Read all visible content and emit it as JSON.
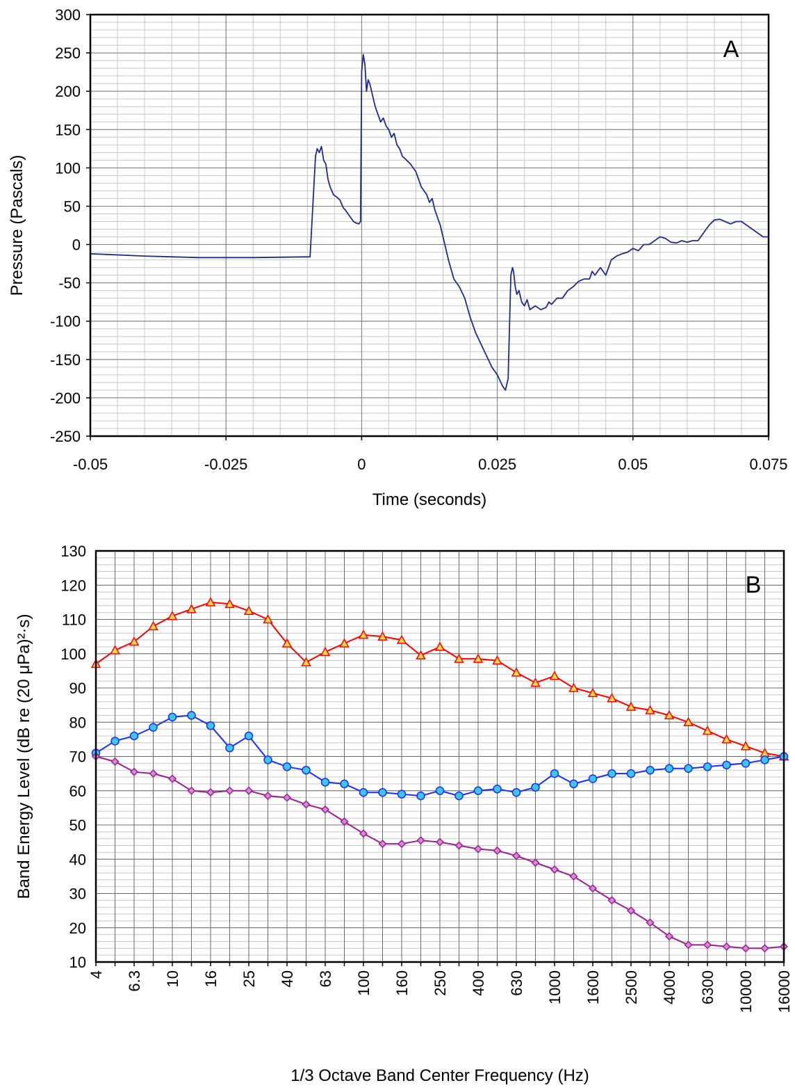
{
  "chart_data": [
    {
      "type": "line",
      "panel_label": "A",
      "xlabel": "Time (seconds)",
      "ylabel": "Pressure (Pascals)",
      "xlim": [
        -0.05,
        0.075
      ],
      "ylim": [
        -250,
        300
      ],
      "x_ticks": [
        -0.05,
        -0.025,
        0,
        0.025,
        0.05,
        0.075
      ],
      "x_tick_labels": [
        "-0.05",
        "-0.025",
        "0",
        "0.025",
        "0.05",
        "0.075"
      ],
      "y_ticks": [
        300,
        250,
        200,
        150,
        100,
        50,
        0,
        -50,
        -100,
        -150,
        -200,
        -250
      ],
      "y_tick_labels": [
        "300",
        "250",
        "200",
        "150",
        "100",
        "50",
        "0",
        "-50",
        "-100",
        "-150",
        "-200",
        "-250"
      ],
      "grid": true,
      "color": "#1f2a8a",
      "series": [
        {
          "x": [
            -0.05,
            -0.04,
            -0.03,
            -0.02,
            -0.0095,
            -0.0085,
            -0.0082,
            -0.0078,
            -0.0074,
            -0.007,
            -0.0066,
            -0.0062,
            -0.0058,
            -0.0052,
            -0.0046,
            -0.004,
            -0.0034,
            -0.003,
            -0.0025,
            -0.002,
            -0.0015,
            -0.001,
            -0.0005,
            -0.0002,
            0.0,
            0.0003,
            0.0006,
            0.0009,
            0.0012,
            0.0015,
            0.002,
            0.0025,
            0.003,
            0.0035,
            0.004,
            0.0045,
            0.005,
            0.0055,
            0.006,
            0.0065,
            0.007,
            0.0075,
            0.008,
            0.009,
            0.01,
            0.011,
            0.012,
            0.0125,
            0.013,
            0.0135,
            0.014,
            0.0145,
            0.015,
            0.016,
            0.017,
            0.018,
            0.019,
            0.02,
            0.021,
            0.022,
            0.023,
            0.024,
            0.025,
            0.026,
            0.0265,
            0.027,
            0.0275,
            0.0278,
            0.028,
            0.0283,
            0.0286,
            0.029,
            0.0295,
            0.03,
            0.0305,
            0.031,
            0.032,
            0.033,
            0.034,
            0.0345,
            0.035,
            0.036,
            0.037,
            0.038,
            0.039,
            0.04,
            0.041,
            0.042,
            0.0425,
            0.043,
            0.044,
            0.045,
            0.046,
            0.047,
            0.048,
            0.049,
            0.05,
            0.051,
            0.052,
            0.053,
            0.054,
            0.055,
            0.056,
            0.057,
            0.058,
            0.059,
            0.06,
            0.061,
            0.062,
            0.063,
            0.064,
            0.065,
            0.066,
            0.067,
            0.068,
            0.069,
            0.07,
            0.071,
            0.072,
            0.073,
            0.074,
            0.075
          ],
          "y": [
            -12,
            -15,
            -17,
            -17,
            -16,
            115,
            125,
            120,
            128,
            110,
            105,
            85,
            75,
            65,
            62,
            58,
            48,
            45,
            40,
            35,
            30,
            28,
            27,
            30,
            225,
            248,
            235,
            200,
            215,
            210,
            195,
            180,
            170,
            160,
            165,
            155,
            150,
            140,
            145,
            130,
            125,
            115,
            112,
            105,
            95,
            75,
            65,
            55,
            60,
            45,
            35,
            25,
            10,
            -20,
            -45,
            -55,
            -70,
            -95,
            -115,
            -130,
            -145,
            -160,
            -170,
            -185,
            -190,
            -175,
            -40,
            -30,
            -35,
            -55,
            -65,
            -60,
            -75,
            -80,
            -72,
            -85,
            -80,
            -85,
            -82,
            -75,
            -78,
            -70,
            -70,
            -60,
            -55,
            -48,
            -45,
            -45,
            -35,
            -40,
            -30,
            -40,
            -20,
            -15,
            -12,
            -10,
            -5,
            -8,
            0,
            0,
            5,
            10,
            8,
            3,
            2,
            5,
            3,
            5,
            5,
            15,
            25,
            32,
            33,
            30,
            27,
            30,
            30,
            25,
            20,
            15,
            10,
            10
          ]
        }
      ]
    },
    {
      "type": "line",
      "panel_label": "B",
      "xlabel": "1/3 Octave Band Center Frequency (Hz)",
      "ylabel": "Band Energy Level (dB re (20 μPa)²·s)",
      "ylim": [
        10,
        130
      ],
      "y_ticks": [
        130,
        120,
        110,
        100,
        90,
        80,
        70,
        60,
        50,
        40,
        30,
        20,
        10
      ],
      "y_tick_labels": [
        "130",
        "120",
        "110",
        "100",
        "90",
        "80",
        "70",
        "60",
        "50",
        "40",
        "30",
        "20",
        "10"
      ],
      "categories": [
        "4",
        "5",
        "6.3",
        "8",
        "10",
        "12.5",
        "16",
        "20",
        "25",
        "31.5",
        "40",
        "50",
        "63",
        "80",
        "100",
        "125",
        "160",
        "200",
        "250",
        "315",
        "400",
        "500",
        "630",
        "800",
        "1000",
        "1250",
        "1600",
        "2000",
        "2500",
        "3150",
        "4000",
        "5000",
        "6300",
        "8000",
        "10000",
        "12500",
        "16000"
      ],
      "x_tick_labels": [
        "4",
        "6.3",
        "10",
        "16",
        "25",
        "40",
        "63",
        "100",
        "160",
        "250",
        "400",
        "630",
        "1000",
        "1600",
        "2500",
        "4000",
        "6300",
        "10000",
        "16000"
      ],
      "grid": true,
      "series": [
        {
          "marker": "triangle",
          "color": "#ff0000",
          "marker_fill": "#ffd84a",
          "values": [
            97,
            101,
            103.5,
            108,
            111,
            113,
            115,
            114.5,
            112.5,
            110,
            103,
            97.5,
            100.5,
            103,
            105.5,
            105,
            104,
            99.5,
            102,
            98.5,
            98.5,
            98,
            94.5,
            91.5,
            93.5,
            90,
            88.5,
            87,
            84.5,
            83.5,
            82,
            80,
            77.5,
            75,
            73,
            71,
            70
          ]
        },
        {
          "marker": "circle",
          "color": "#1a2cff",
          "marker_fill": "#3cc7e8",
          "values": [
            71,
            74.5,
            76,
            78.5,
            81.5,
            82,
            79,
            72.5,
            76,
            69,
            67,
            66,
            62.5,
            62,
            59.5,
            59.5,
            59,
            58.5,
            60,
            58.5,
            60,
            60.5,
            59.5,
            61,
            65,
            62,
            63.5,
            65,
            65,
            66,
            66.5,
            66.5,
            67,
            67.5,
            68,
            69,
            70
          ]
        },
        {
          "marker": "diamond",
          "color": "#9b1f8f",
          "marker_fill": "#d58ad6",
          "values": [
            70,
            68.5,
            65.5,
            65,
            63.5,
            60,
            59.5,
            60,
            60,
            58.5,
            58,
            56,
            54.5,
            51,
            47.5,
            44.5,
            44.5,
            45.5,
            45,
            44,
            43,
            42.5,
            41,
            39,
            37,
            35,
            31.5,
            28,
            25,
            21.5,
            17.5,
            15,
            15,
            14.5,
            14,
            14,
            14.5
          ]
        }
      ]
    }
  ]
}
